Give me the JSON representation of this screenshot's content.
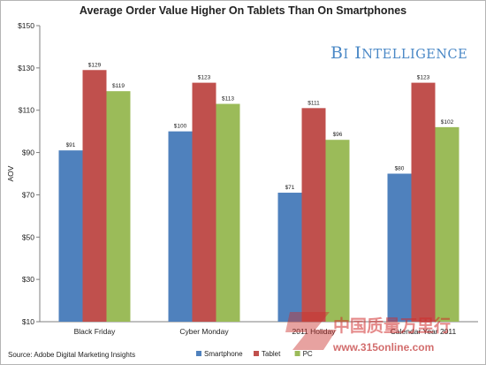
{
  "chart_data": {
    "type": "bar",
    "title": "Average Order Value Higher On Tablets Than On Smartphones",
    "ylabel": "AOV",
    "xlabel": "",
    "ylim": [
      10,
      150
    ],
    "yticks": [
      "$10",
      "$30",
      "$50",
      "$70",
      "$90",
      "$110",
      "$130",
      "$150"
    ],
    "yticks_values": [
      10,
      30,
      50,
      70,
      90,
      110,
      130,
      150
    ],
    "categories": [
      "Black Friday",
      "Cyber Monday",
      "2011 Holiday",
      "Calendar Year 2011"
    ],
    "series": [
      {
        "name": "Smartphone",
        "color": "#4f81bd",
        "values": [
          91,
          100,
          71,
          80
        ],
        "labels": [
          "$91",
          "$100",
          "$71",
          "$80"
        ]
      },
      {
        "name": "Tablet",
        "color": "#c0504d",
        "values": [
          129,
          123,
          111,
          123
        ],
        "labels": [
          "$129",
          "$123",
          "$111",
          "$123"
        ]
      },
      {
        "name": "PC",
        "color": "#9bbb59",
        "values": [
          119,
          113,
          96,
          102
        ],
        "labels": [
          "$119",
          "$113",
          "$96",
          "$102"
        ]
      }
    ],
    "grid": false,
    "legend_position": "bottom-center"
  },
  "brand_text": "BI Intelligence",
  "source_text": "Source: Adobe Digital Marketing Insights",
  "watermark": {
    "chinese": "中国质量万里行",
    "url": "www.315online.com"
  }
}
